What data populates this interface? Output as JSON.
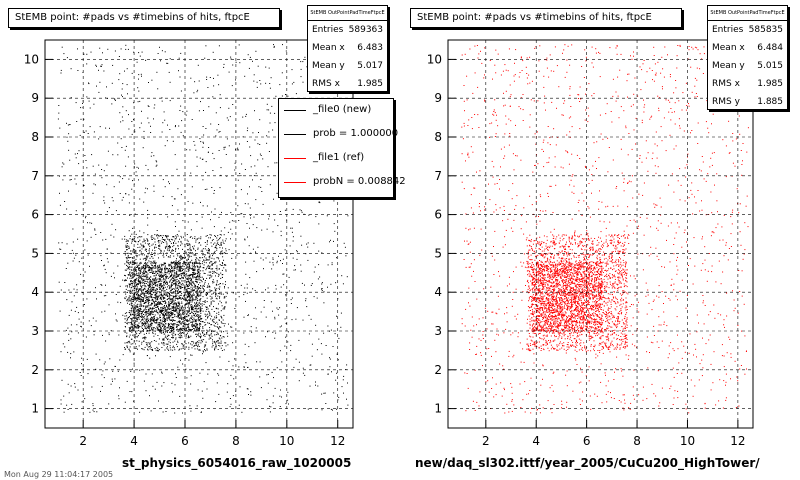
{
  "chart_data": [
    {
      "type": "scatter",
      "title": "StEMB point: #pads vs #timebins of hits, ftpcE",
      "xlabel": "st_physics_6054016_raw_1020005",
      "ylabel": "",
      "xlim": [
        0.5,
        12.6
      ],
      "ylim": [
        0.5,
        10.5
      ],
      "xticks": [
        2,
        4,
        6,
        8,
        10,
        12
      ],
      "yticks": [
        1,
        2,
        3,
        4,
        5,
        6,
        7,
        8,
        9,
        10
      ],
      "grid": true,
      "marker_color": "#000000",
      "stats": {
        "header": "StEMB OutPointPadTimeFtpcE",
        "rows": [
          {
            "label": "Entries",
            "value": "589363"
          },
          {
            "label": "Mean x",
            "value": "6.483"
          },
          {
            "label": "Mean y",
            "value": "5.017"
          },
          {
            "label": "RMS x",
            "value": "1.985"
          }
        ]
      },
      "legend": {
        "placement": "right",
        "entries": [
          {
            "label": "_file0 (new)",
            "color": "#000000"
          },
          {
            "label": "prob = 1.000000",
            "color": "#000000"
          },
          {
            "label": "_file1 (ref)",
            "color": "#ff0000"
          },
          {
            "label": "probN = 0.008842",
            "color": "#ff0000"
          }
        ]
      },
      "density_model": {
        "x_range": [
          1.0,
          12.4
        ],
        "y_range": [
          0.9,
          10.4
        ],
        "core": {
          "x": [
            3.6,
            7.6
          ],
          "y": [
            2.5,
            5.5
          ]
        },
        "dense": {
          "x": [
            3.8,
            6.6
          ],
          "y": [
            3.0,
            4.8
          ]
        }
      }
    },
    {
      "type": "scatter",
      "title": "StEMB point: #pads vs #timebins of hits, ftpcE",
      "xlabel": "new/daq_sl302.ittf/year_2005/CuCu200_HighTower/",
      "ylabel": "",
      "xlim": [
        0.5,
        12.6
      ],
      "ylim": [
        0.5,
        10.5
      ],
      "xticks": [
        2,
        4,
        6,
        8,
        10,
        12
      ],
      "yticks": [
        1,
        2,
        3,
        4,
        5,
        6,
        7,
        8,
        9,
        10
      ],
      "grid": true,
      "marker_color": "#ff0000",
      "stats": {
        "header": "StEMB OutPointPadTimeFtpcE",
        "rows": [
          {
            "label": "Entries",
            "value": "585835"
          },
          {
            "label": "Mean x",
            "value": "6.484"
          },
          {
            "label": "Mean y",
            "value": "5.015"
          },
          {
            "label": "RMS x",
            "value": "1.985"
          },
          {
            "label": "RMS y",
            "value": "1.885"
          }
        ]
      },
      "density_model": {
        "x_range": [
          1.0,
          12.4
        ],
        "y_range": [
          0.9,
          10.4
        ],
        "core": {
          "x": [
            3.6,
            7.6
          ],
          "y": [
            2.5,
            5.5
          ]
        },
        "dense": {
          "x": [
            3.8,
            6.6
          ],
          "y": [
            3.0,
            4.8
          ]
        }
      }
    }
  ],
  "footer": {
    "text": "Mon Aug 29 11:04:17 2005"
  }
}
